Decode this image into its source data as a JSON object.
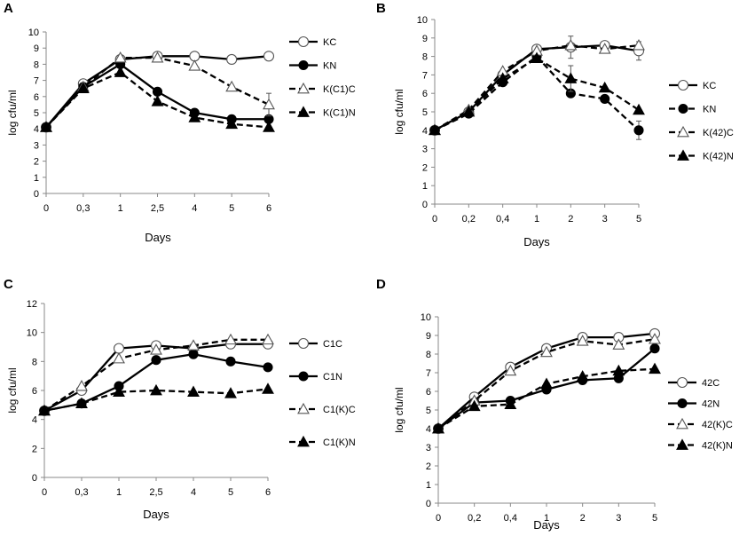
{
  "chart_data": [
    {
      "panel": "A",
      "type": "line",
      "xlabel": "Days",
      "ylabel": "log cfu/ml",
      "categories": [
        "0",
        "0,3",
        "1",
        "2,5",
        "4",
        "5",
        "6"
      ],
      "ylim": [
        0,
        10
      ],
      "yticks": [
        0,
        1,
        2,
        3,
        4,
        5,
        6,
        7,
        8,
        9,
        10
      ],
      "grid": false,
      "legend_position": "right",
      "series": [
        {
          "name": "KC",
          "style": "solid",
          "marker": "circle-open",
          "values": [
            4.1,
            6.8,
            8.3,
            8.5,
            8.5,
            8.3,
            8.5
          ]
        },
        {
          "name": "KN",
          "style": "solid",
          "marker": "circle-filled",
          "values": [
            4.1,
            6.6,
            8.0,
            6.3,
            5.0,
            4.6,
            4.6
          ]
        },
        {
          "name": "K(C1)C",
          "style": "dashed",
          "marker": "triangle-open",
          "values": [
            4.1,
            6.6,
            8.4,
            8.4,
            7.9,
            6.6,
            5.5
          ],
          "errors": [
            0,
            0,
            0,
            0,
            0,
            0,
            0.7
          ]
        },
        {
          "name": "K(C1)N",
          "style": "dashed",
          "marker": "triangle-filled",
          "values": [
            4.1,
            6.5,
            7.5,
            5.7,
            4.7,
            4.3,
            4.1
          ]
        }
      ]
    },
    {
      "panel": "B",
      "type": "line",
      "xlabel": "Days",
      "ylabel": "log cfu/ml",
      "categories": [
        "0",
        "0,2",
        "0,4",
        "1",
        "2",
        "3",
        "5"
      ],
      "ylim": [
        0,
        10
      ],
      "yticks": [
        0,
        1,
        2,
        3,
        4,
        5,
        6,
        7,
        8,
        9,
        10
      ],
      "grid": false,
      "legend_position": "right",
      "series": [
        {
          "name": "KC",
          "style": "solid",
          "marker": "circle-open",
          "values": [
            4.0,
            5.0,
            7.0,
            8.4,
            8.5,
            8.6,
            8.3
          ],
          "errors": [
            0,
            0,
            0,
            0,
            0.6,
            0,
            0.5
          ]
        },
        {
          "name": "KN",
          "style": "dashed",
          "marker": "circle-filled",
          "values": [
            4.0,
            4.9,
            6.6,
            8.0,
            6.0,
            5.7,
            4.0
          ],
          "errors": [
            0,
            0,
            0,
            0,
            0,
            0,
            0.5
          ]
        },
        {
          "name": "K(42)C",
          "style": "dashed",
          "marker": "triangle-open",
          "values": [
            4.0,
            5.1,
            7.2,
            8.3,
            8.6,
            8.4,
            8.6
          ]
        },
        {
          "name": "K(42)N",
          "style": "dashed",
          "marker": "triangle-filled",
          "values": [
            4.0,
            5.0,
            6.8,
            7.9,
            6.8,
            6.3,
            5.1
          ],
          "errors": [
            0,
            0,
            0,
            0,
            0.7,
            0,
            0
          ]
        }
      ]
    },
    {
      "panel": "C",
      "type": "line",
      "xlabel": "Days",
      "ylabel": "log cfu/ml",
      "categories": [
        "0",
        "0,3",
        "1",
        "2,5",
        "4",
        "5",
        "6"
      ],
      "ylim": [
        0,
        12
      ],
      "yticks": [
        0,
        2,
        4,
        6,
        8,
        10,
        12
      ],
      "grid": false,
      "legend_position": "right",
      "series": [
        {
          "name": "C1C",
          "style": "solid",
          "marker": "circle-open",
          "values": [
            4.6,
            6.0,
            8.9,
            9.1,
            8.9,
            9.2,
            9.2
          ]
        },
        {
          "name": "C1N",
          "style": "solid",
          "marker": "circle-filled",
          "values": [
            4.6,
            5.1,
            6.3,
            8.1,
            8.5,
            8.0,
            7.6
          ]
        },
        {
          "name": "C1(K)C",
          "style": "dashed",
          "marker": "triangle-open",
          "values": [
            4.6,
            6.3,
            8.2,
            8.8,
            9.1,
            9.5,
            9.5
          ]
        },
        {
          "name": "C1(K)N",
          "style": "dashed",
          "marker": "triangle-filled",
          "values": [
            4.6,
            5.1,
            5.9,
            6.0,
            5.9,
            5.8,
            6.1
          ]
        }
      ]
    },
    {
      "panel": "D",
      "type": "line",
      "xlabel": "Days",
      "ylabel": "log cfu/ml",
      "categories": [
        "0",
        "0,2",
        "0,4",
        "1",
        "2",
        "3",
        "5"
      ],
      "ylim": [
        0,
        10
      ],
      "yticks": [
        0,
        1,
        2,
        3,
        4,
        5,
        6,
        7,
        8,
        9,
        10
      ],
      "grid": false,
      "legend_position": "right",
      "series": [
        {
          "name": "42C",
          "style": "solid",
          "marker": "circle-open",
          "values": [
            4.0,
            5.7,
            7.3,
            8.3,
            8.9,
            8.9,
            9.1
          ]
        },
        {
          "name": "42N",
          "style": "solid",
          "marker": "circle-filled",
          "values": [
            4.0,
            5.4,
            5.5,
            6.1,
            6.6,
            6.7,
            8.3
          ]
        },
        {
          "name": "42(K)C",
          "style": "dashed",
          "marker": "triangle-open",
          "values": [
            4.0,
            5.5,
            7.1,
            8.1,
            8.7,
            8.5,
            8.8
          ]
        },
        {
          "name": "42(K)N",
          "style": "dashed",
          "marker": "triangle-filled",
          "values": [
            4.0,
            5.2,
            5.3,
            6.4,
            6.8,
            7.1,
            7.2
          ]
        }
      ]
    }
  ]
}
